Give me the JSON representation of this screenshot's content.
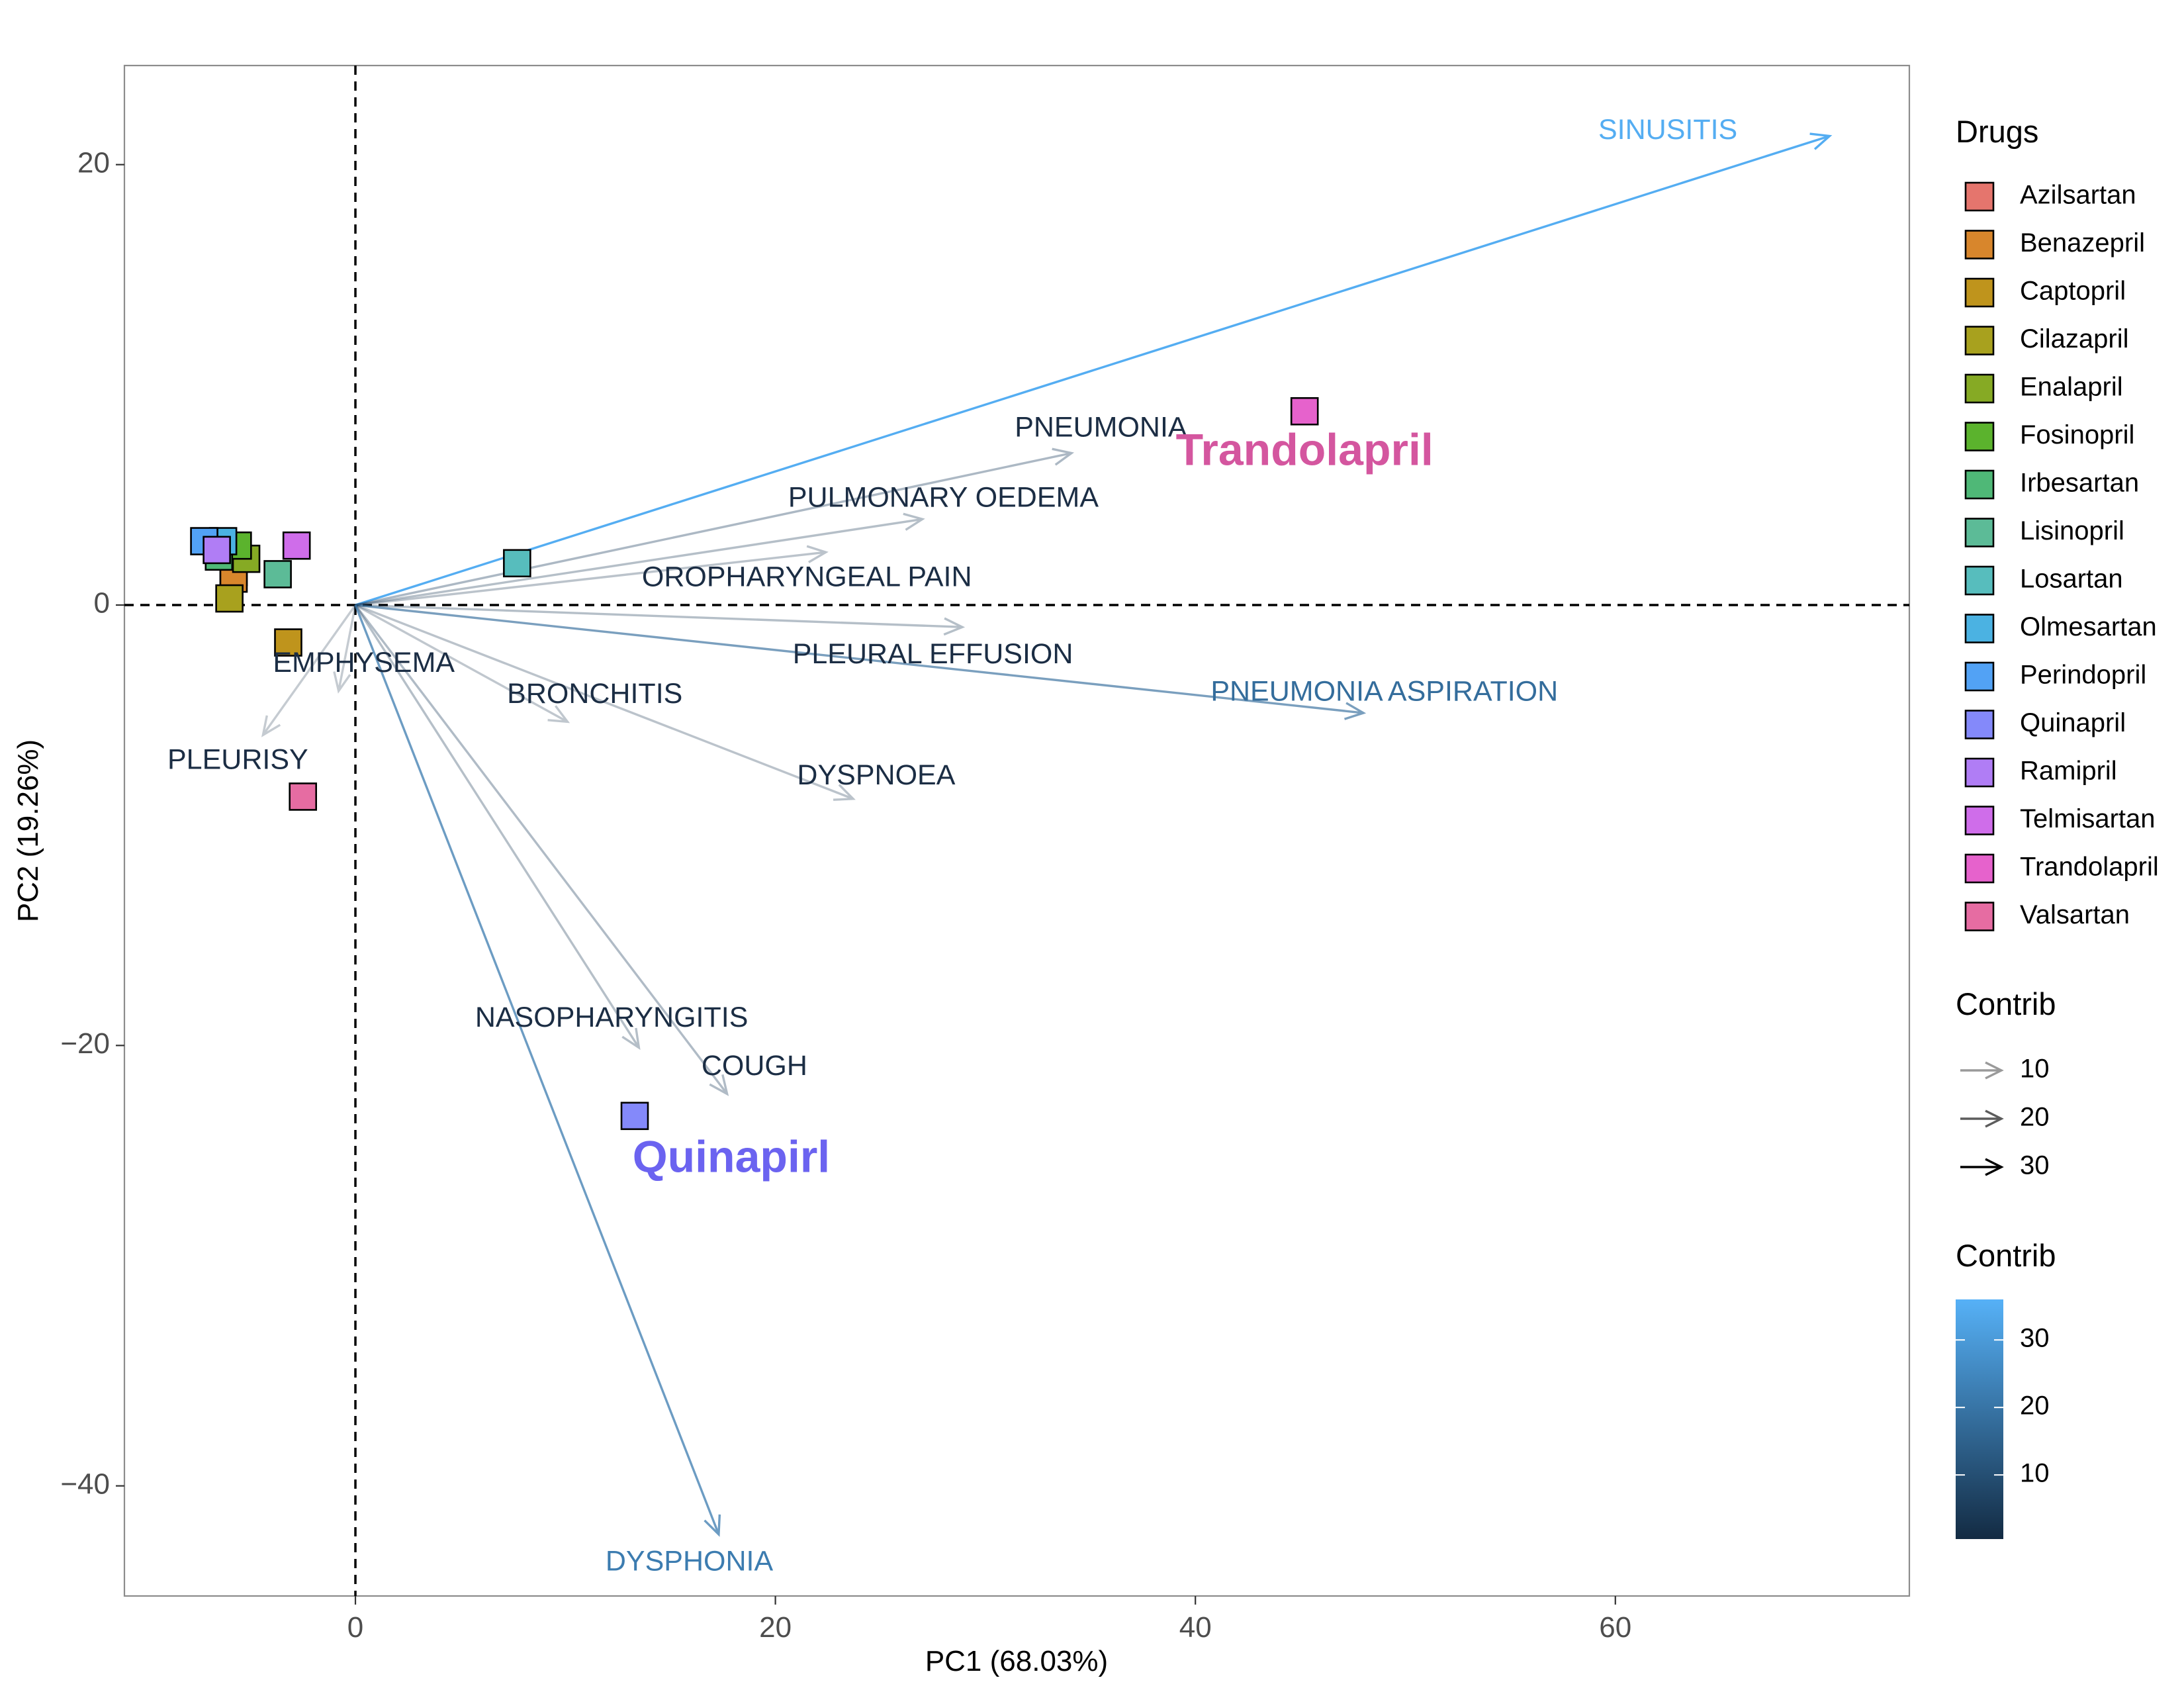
{
  "chart_data": {
    "type": "scatter",
    "subtype": "pca-biplot",
    "xlabel": "PC1 (68.03%)",
    "ylabel": "PC2 (19.26%)",
    "xlim": [
      -11,
      74
    ],
    "ylim": [
      -45,
      24.5
    ],
    "xticks": [
      0,
      20,
      40,
      60
    ],
    "yticks": [
      20,
      0,
      -20,
      -40
    ],
    "grid": false,
    "reference_lines": {
      "x": 0,
      "y": 0,
      "style": "dashed"
    },
    "drugs_legend_title": "Drugs",
    "drugs": [
      {
        "name": "Azilsartan",
        "color": "#E5756D",
        "x": -5.8,
        "y": 1.5
      },
      {
        "name": "Benazepril",
        "color": "#D8862C",
        "x": -5.8,
        "y": 1.2
      },
      {
        "name": "Captopril",
        "color": "#BF941C",
        "x": -3.2,
        "y": -1.7
      },
      {
        "name": "Cilazapril",
        "color": "#A8A11E",
        "x": -6.0,
        "y": 0.3
      },
      {
        "name": "Enalapril",
        "color": "#86AA24",
        "x": -5.2,
        "y": 2.1
      },
      {
        "name": "Fosinopril",
        "color": "#5BB32D",
        "x": -5.6,
        "y": 2.7
      },
      {
        "name": "Irbesartan",
        "color": "#4FB877",
        "x": -6.5,
        "y": 2.2
      },
      {
        "name": "Lisinopril",
        "color": "#5CBB97",
        "x": -3.7,
        "y": 1.4
      },
      {
        "name": "Losartan",
        "color": "#57BDBD",
        "x": 7.7,
        "y": 1.9
      },
      {
        "name": "Olmesartan",
        "color": "#4BB2E2",
        "x": -6.3,
        "y": 2.9
      },
      {
        "name": "Perindopril",
        "color": "#52A2F5",
        "x": -7.2,
        "y": 2.9
      },
      {
        "name": "Quinapril",
        "color": "#8489FA",
        "x": 13.3,
        "y": -23.2
      },
      {
        "name": "Ramipril",
        "color": "#B07DF5",
        "x": -6.6,
        "y": 2.5
      },
      {
        "name": "Telmisartan",
        "color": "#CF6DEA",
        "x": -2.8,
        "y": 2.7
      },
      {
        "name": "Trandolapril",
        "color": "#E662CC",
        "x": 45.2,
        "y": 8.8
      },
      {
        "name": "Valsartan",
        "color": "#E66CA2",
        "x": -2.5,
        "y": -8.7
      }
    ],
    "highlighted_drug_labels": [
      {
        "text": "Trandolapril",
        "color": "#D4569F",
        "x": 45.2,
        "y": 6.9
      },
      {
        "text": "Quinapirl",
        "color": "#6B63F0",
        "x": 17.9,
        "y": -25.2
      }
    ],
    "variables": [
      {
        "name": "SINUSITIS",
        "x": 70.2,
        "y": 21.3,
        "contrib": 35,
        "label_x": 62.5,
        "label_y": 21.5
      },
      {
        "name": "PNEUMONIA",
        "x": 34.1,
        "y": 6.9,
        "contrib": 6,
        "label_x": 35.5,
        "label_y": 8.0
      },
      {
        "name": "PULMONARY OEDEMA",
        "x": 27.0,
        "y": 3.9,
        "contrib": 4,
        "label_x": 28.0,
        "label_y": 4.8
      },
      {
        "name": "OROPHARYNGEAL PAIN",
        "x": 22.4,
        "y": 2.4,
        "contrib": 3,
        "label_x": 21.5,
        "label_y": 1.2
      },
      {
        "name": "PLEURAL EFFUSION",
        "x": 28.9,
        "y": -1.0,
        "contrib": 4,
        "label_x": 27.5,
        "label_y": -2.3
      },
      {
        "name": "PNEUMONIA ASPIRATION",
        "x": 48.0,
        "y": -4.9,
        "contrib": 18,
        "label_x": 49.0,
        "label_y": -4.0
      },
      {
        "name": "EMPHYSEMA",
        "x": -0.8,
        "y": -3.9,
        "contrib": 1,
        "label_x": 0.4,
        "label_y": -2.7
      },
      {
        "name": "BRONCHITIS",
        "x": 10.1,
        "y": -5.3,
        "contrib": 2,
        "label_x": 11.4,
        "label_y": -4.1
      },
      {
        "name": "PLEURISY",
        "x": -4.4,
        "y": -5.9,
        "contrib": 1,
        "label_x": -5.6,
        "label_y": -7.1
      },
      {
        "name": "DYSPNOEA",
        "x": 23.7,
        "y": -8.8,
        "contrib": 3,
        "label_x": 24.8,
        "label_y": -7.8
      },
      {
        "name": "NASOPHARYNGITIS",
        "x": 13.5,
        "y": -20.1,
        "contrib": 4,
        "label_x": 12.2,
        "label_y": -18.8
      },
      {
        "name": "COUGH",
        "x": 17.7,
        "y": -22.2,
        "contrib": 5,
        "label_x": 19.0,
        "label_y": -21.0
      },
      {
        "name": "DYSPHONIA",
        "x": 17.3,
        "y": -42.2,
        "contrib": 22,
        "label_x": 15.9,
        "label_y": -43.5
      }
    ],
    "contrib_size_legend": {
      "title": "Contrib",
      "values": [
        10,
        20,
        30
      ]
    },
    "contrib_color_legend": {
      "title": "Contrib",
      "min": 0.5,
      "max": 36,
      "ticks": [
        30,
        20,
        10
      ],
      "low_color": "#132B43",
      "high_color": "#56B1F7"
    }
  }
}
